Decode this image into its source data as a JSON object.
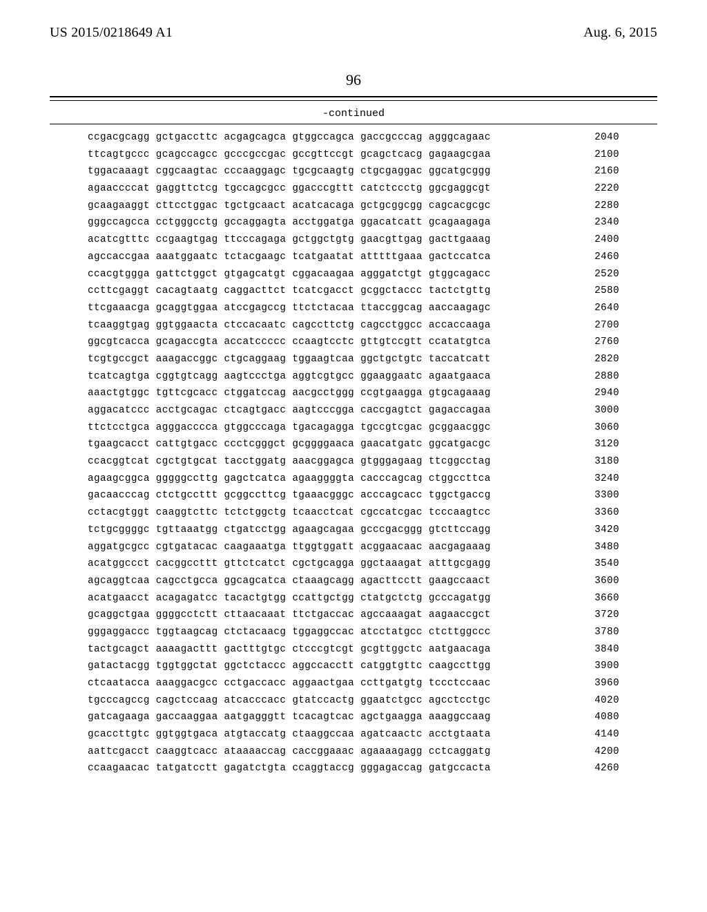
{
  "header": {
    "publication_number": "US 2015/0218649 A1",
    "publication_date": "Aug. 6, 2015"
  },
  "page_number": "96",
  "continued_label": "-continued",
  "sequence": {
    "start": 2040,
    "step": 60,
    "rows": [
      "ccgacgcagg gctgaccttc acgagcagca gtggccagca gaccgcccag agggcagaac",
      "ttcagtgccc gcagccagcc gcccgccgac gccgttccgt gcagctcacg gagaagcgaa",
      "tggacaaagt cggcaagtac cccaaggagc tgcgcaagtg ctgcgaggac ggcatgcggg",
      "agaaccccat gaggttctcg tgccagcgcc ggacccgttt catctccctg ggcgaggcgt",
      "gcaagaaggt cttcctggac tgctgcaact acatcacaga gctgcggcgg cagcacgcgc",
      "gggccagcca cctgggcctg gccaggagta acctggatga ggacatcatt gcagaagaga",
      "acatcgtttc ccgaagtgag ttcccagaga gctggctgtg gaacgttgag gacttgaaag",
      "agccaccgaa aaatggaatc tctacgaagc tcatgaatat atttttgaaa gactccatca",
      "ccacgtggga gattctggct gtgagcatgt cggacaagaa agggatctgt gtggcagacc",
      "ccttcgaggt cacagtaatg caggacttct tcatcgacct gcggctaccc tactctgttg",
      "ttcgaaacga gcaggtggaa atccgagccg ttctctacaa ttaccggcag aaccaagagc",
      "tcaaggtgag ggtggaacta ctccacaatc cagccttctg cagcctggcc accaccaaga",
      "ggcgtcacca gcagaccgta accatccccc ccaagtcctc gttgtccgtt ccatatgtca",
      "tcgtgccgct aaagaccggc ctgcaggaag tggaagtcaa ggctgctgtc taccatcatt",
      "tcatcagtga cggtgtcagg aagtccctga aggtcgtgcc ggaaggaatc agaatgaaca",
      "aaactgtggc tgttcgcacc ctggatccag aacgcctggg ccgtgaagga gtgcagaaag",
      "aggacatccc acctgcagac ctcagtgacc aagtcccgga caccgagtct gagaccagaa",
      "ttctcctgca agggacccca gtggcccaga tgacagagga tgccgtcgac gcggaacggc",
      "tgaagcacct cattgtgacc ccctcgggct gcggggaaca gaacatgatc ggcatgacgc",
      "ccacggtcat cgctgtgcat tacctggatg aaacggagca gtgggagaag ttcggcctag",
      "agaagcggca gggggccttg gagctcatca agaaggggta cacccagcag ctggccttca",
      "gacaacccag ctctgccttt gcggccttcg tgaaacgggc acccagcacc tggctgaccg",
      "cctacgtggt caaggtcttc tctctggctg tcaacctcat cgccatcgac tcccaagtcc",
      "tctgcggggc tgttaaatgg ctgatcctgg agaagcagaa gcccgacggg gtcttccagg",
      "aggatgcgcc cgtgatacac caagaaatga ttggtggatt acggaacaac aacgagaaag",
      "acatggccct cacggccttt gttctcatct cgctgcagga ggctaaagat atttgcgagg",
      "agcaggtcaa cagcctgcca ggcagcatca ctaaagcagg agacttcctt gaagccaact",
      "acatgaacct acagagatcc tacactgtgg ccattgctgg ctatgctctg gcccagatgg",
      "gcaggctgaa ggggcctctt cttaacaaat ttctgaccac agccaaagat aagaaccgct",
      "gggaggaccc tggtaagcag ctctacaacg tggaggccac atcctatgcc ctcttggccc",
      "tactgcagct aaaagacttt gactttgtgc ctcccgtcgt gcgttggctc aatgaacaga",
      "gatactacgg tggtggctat ggctctaccc aggccacctt catggtgttc caagccttgg",
      "ctcaatacca aaaggacgcc cctgaccacc aggaactgaa ccttgatgtg tccctccaac",
      "tgcccagccg cagctccaag atcacccacc gtatccactg ggaatctgcc agcctcctgc",
      "gatcagaaga gaccaaggaa aatgagggtt tcacagtcac agctgaagga aaaggccaag",
      "gcaccttgtc ggtggtgaca atgtaccatg ctaaggccaa agatcaactc acctgtaata",
      "aattcgacct caaggtcacc ataaaaccag caccggaaac agaaaagagg cctcaggatg",
      "ccaagaacac tatgatcctt gagatctgta ccaggtaccg gggagaccag gatgccacta"
    ]
  }
}
